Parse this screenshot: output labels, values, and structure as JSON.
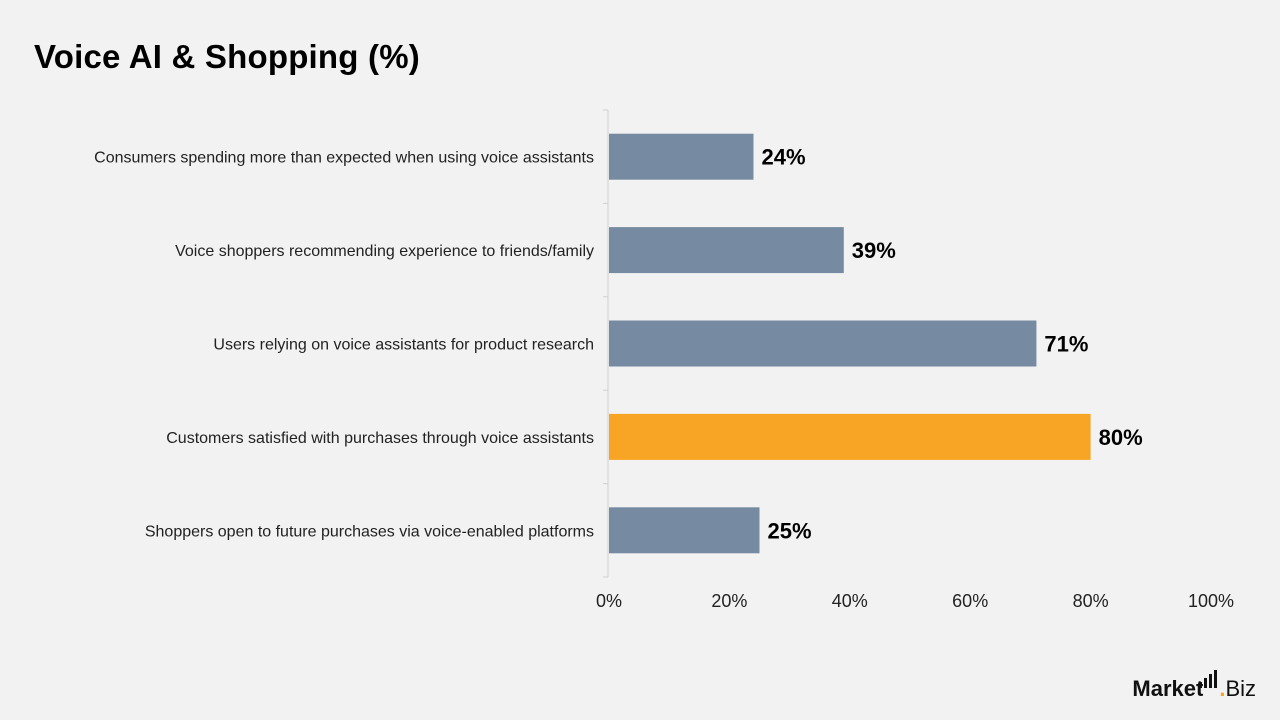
{
  "title": "Voice AI & Shopping (%)",
  "logo": {
    "text_bold": "Market",
    "dot": ".",
    "text_regular": "Biz",
    "icon": "bar-chart-icon"
  },
  "colors": {
    "bar_default": "#768ba1",
    "bar_highlight": "#f8a526",
    "background": "#f2f2f2",
    "axis": "#d0d0d0"
  },
  "chart_data": {
    "type": "bar",
    "orientation": "horizontal",
    "categories": [
      "Consumers spending more than expected when using voice assistants",
      "Voice shoppers recommending experience to friends/family",
      "Users relying on voice assistants for product research",
      "Customers satisfied with purchases through voice assistants",
      "Shoppers open to future purchases via voice-enabled platforms"
    ],
    "values": [
      24,
      39,
      71,
      80,
      25
    ],
    "value_labels": [
      "24%",
      "39%",
      "71%",
      "80%",
      "25%"
    ],
    "highlight_index": 3,
    "xlim": [
      0,
      100
    ],
    "xticks": [
      "0%",
      "20%",
      "40%",
      "60%",
      "80%",
      "100%"
    ],
    "xlabel": "",
    "ylabel": "",
    "grid": false,
    "legend": "none"
  }
}
